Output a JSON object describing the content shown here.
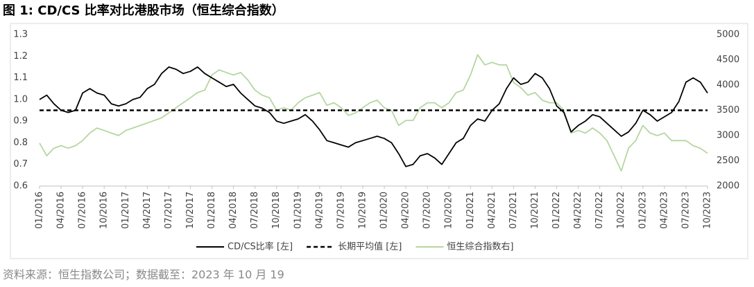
{
  "chart_data": {
    "type": "line",
    "title": "图 1: CD/CS 比率对比港股市场（恒生综合指数）",
    "source": "资料来源：恒生指数公司；数据截至：2023 年 10 月 19",
    "categories": [
      "01/2016",
      null,
      null,
      "04/2016",
      null,
      null,
      "07/2016",
      null,
      null,
      "10/2016",
      null,
      null,
      "01/2017",
      null,
      null,
      "04/2017",
      null,
      null,
      "07/2017",
      null,
      null,
      "10/2017",
      null,
      null,
      "01/2018",
      null,
      null,
      "04/2018",
      null,
      null,
      "07/2018",
      null,
      null,
      "10/2018",
      null,
      null,
      "01/2019",
      null,
      null,
      "04/2019",
      null,
      null,
      "07/2019",
      null,
      null,
      "10/2019",
      null,
      null,
      "01/2020",
      null,
      null,
      "04/2020",
      null,
      null,
      "07/2020",
      null,
      null,
      "10/2020",
      null,
      null,
      "01/2021",
      null,
      null,
      "04/2021",
      null,
      null,
      "07/2021",
      null,
      null,
      "10/2021",
      null,
      null,
      "01/2022",
      null,
      null,
      "04/2022",
      null,
      null,
      "07/2022",
      null,
      null,
      "10/2022",
      null,
      null,
      "01/2023",
      null,
      null,
      "04/2023",
      null,
      null,
      "07/2023",
      null,
      null,
      "10/2023"
    ],
    "series": [
      {
        "name": "恒生综合指数右]",
        "color": "#b5d6a0",
        "axis": "y2",
        "dash": false,
        "values": [
          2850,
          2600,
          2750,
          2800,
          2750,
          2800,
          2900,
          3050,
          3150,
          3100,
          3050,
          3000,
          3100,
          3150,
          3200,
          3250,
          3300,
          3350,
          3450,
          3550,
          3650,
          3750,
          3850,
          3900,
          4200,
          4300,
          4250,
          4200,
          4250,
          4100,
          3900,
          3800,
          3750,
          3500,
          3550,
          3500,
          3650,
          3750,
          3800,
          3850,
          3600,
          3650,
          3550,
          3400,
          3450,
          3550,
          3650,
          3700,
          3550,
          3500,
          3200,
          3300,
          3300,
          3550,
          3650,
          3650,
          3550,
          3650,
          3850,
          3900,
          4200,
          4600,
          4400,
          4450,
          4400,
          4400,
          4050,
          3950,
          3800,
          3850,
          3700,
          3650,
          3650,
          3500,
          3050,
          3100,
          3050,
          3150,
          3050,
          2900,
          2600,
          2300,
          2750,
          2900,
          3200,
          3050,
          3000,
          3050,
          2900,
          2900,
          2900,
          2800,
          2750,
          2650
        ]
      },
      {
        "name": "长期平均值 [左]",
        "color": "#000000",
        "axis": "y",
        "dash": true,
        "values": [
          0.95,
          0.95,
          0.95,
          0.95,
          0.95,
          0.95,
          0.95,
          0.95,
          0.95,
          0.95,
          0.95,
          0.95,
          0.95,
          0.95,
          0.95,
          0.95,
          0.95,
          0.95,
          0.95,
          0.95,
          0.95,
          0.95,
          0.95,
          0.95,
          0.95,
          0.95,
          0.95,
          0.95,
          0.95,
          0.95,
          0.95,
          0.95,
          0.95,
          0.95,
          0.95,
          0.95,
          0.95,
          0.95,
          0.95,
          0.95,
          0.95,
          0.95,
          0.95,
          0.95,
          0.95,
          0.95,
          0.95,
          0.95,
          0.95,
          0.95,
          0.95,
          0.95,
          0.95,
          0.95,
          0.95,
          0.95,
          0.95,
          0.95,
          0.95,
          0.95,
          0.95,
          0.95,
          0.95,
          0.95,
          0.95,
          0.95,
          0.95,
          0.95,
          0.95,
          0.95,
          0.95,
          0.95,
          0.95,
          0.95,
          0.95,
          0.95,
          0.95,
          0.95,
          0.95,
          0.95,
          0.95,
          0.95,
          0.95,
          0.95,
          0.95,
          0.95,
          0.95,
          0.95,
          0.95,
          0.95,
          0.95,
          0.95,
          0.95,
          0.95
        ]
      },
      {
        "name": "CD/CS比率 [左]",
        "color": "#000000",
        "axis": "y",
        "dash": false,
        "values": [
          1.0,
          1.02,
          0.98,
          0.95,
          0.94,
          0.95,
          1.03,
          1.05,
          1.03,
          1.02,
          0.98,
          0.97,
          0.98,
          1.0,
          1.01,
          1.05,
          1.07,
          1.12,
          1.15,
          1.14,
          1.12,
          1.13,
          1.15,
          1.12,
          1.1,
          1.08,
          1.06,
          1.07,
          1.03,
          1.0,
          0.97,
          0.96,
          0.94,
          0.9,
          0.89,
          0.9,
          0.91,
          0.93,
          0.9,
          0.86,
          0.81,
          0.8,
          0.79,
          0.78,
          0.8,
          0.81,
          0.82,
          0.83,
          0.82,
          0.8,
          0.75,
          0.69,
          0.7,
          0.74,
          0.75,
          0.73,
          0.7,
          0.75,
          0.8,
          0.82,
          0.88,
          0.91,
          0.9,
          0.95,
          0.98,
          1.05,
          1.1,
          1.07,
          1.08,
          1.12,
          1.1,
          1.05,
          0.97,
          0.94,
          0.85,
          0.88,
          0.9,
          0.93,
          0.92,
          0.89,
          0.86,
          0.83,
          0.85,
          0.89,
          0.95,
          0.93,
          0.9,
          0.92,
          0.94,
          0.99,
          1.08,
          1.1,
          1.08,
          1.03
        ]
      }
    ],
    "legend_order": [
      2,
      1,
      0
    ],
    "ylim": [
      0.6,
      1.3
    ],
    "yticks": [
      0.6,
      0.7,
      0.8,
      0.9,
      {
        "value": 1,
        "label": "1.0"
      },
      1.1,
      1.2,
      1.3
    ],
    "y2lim": [
      2000,
      5000
    ],
    "y2ticks": [
      2000,
      2500,
      3000,
      3500,
      4000,
      4500,
      5000
    ],
    "grid": false
  }
}
